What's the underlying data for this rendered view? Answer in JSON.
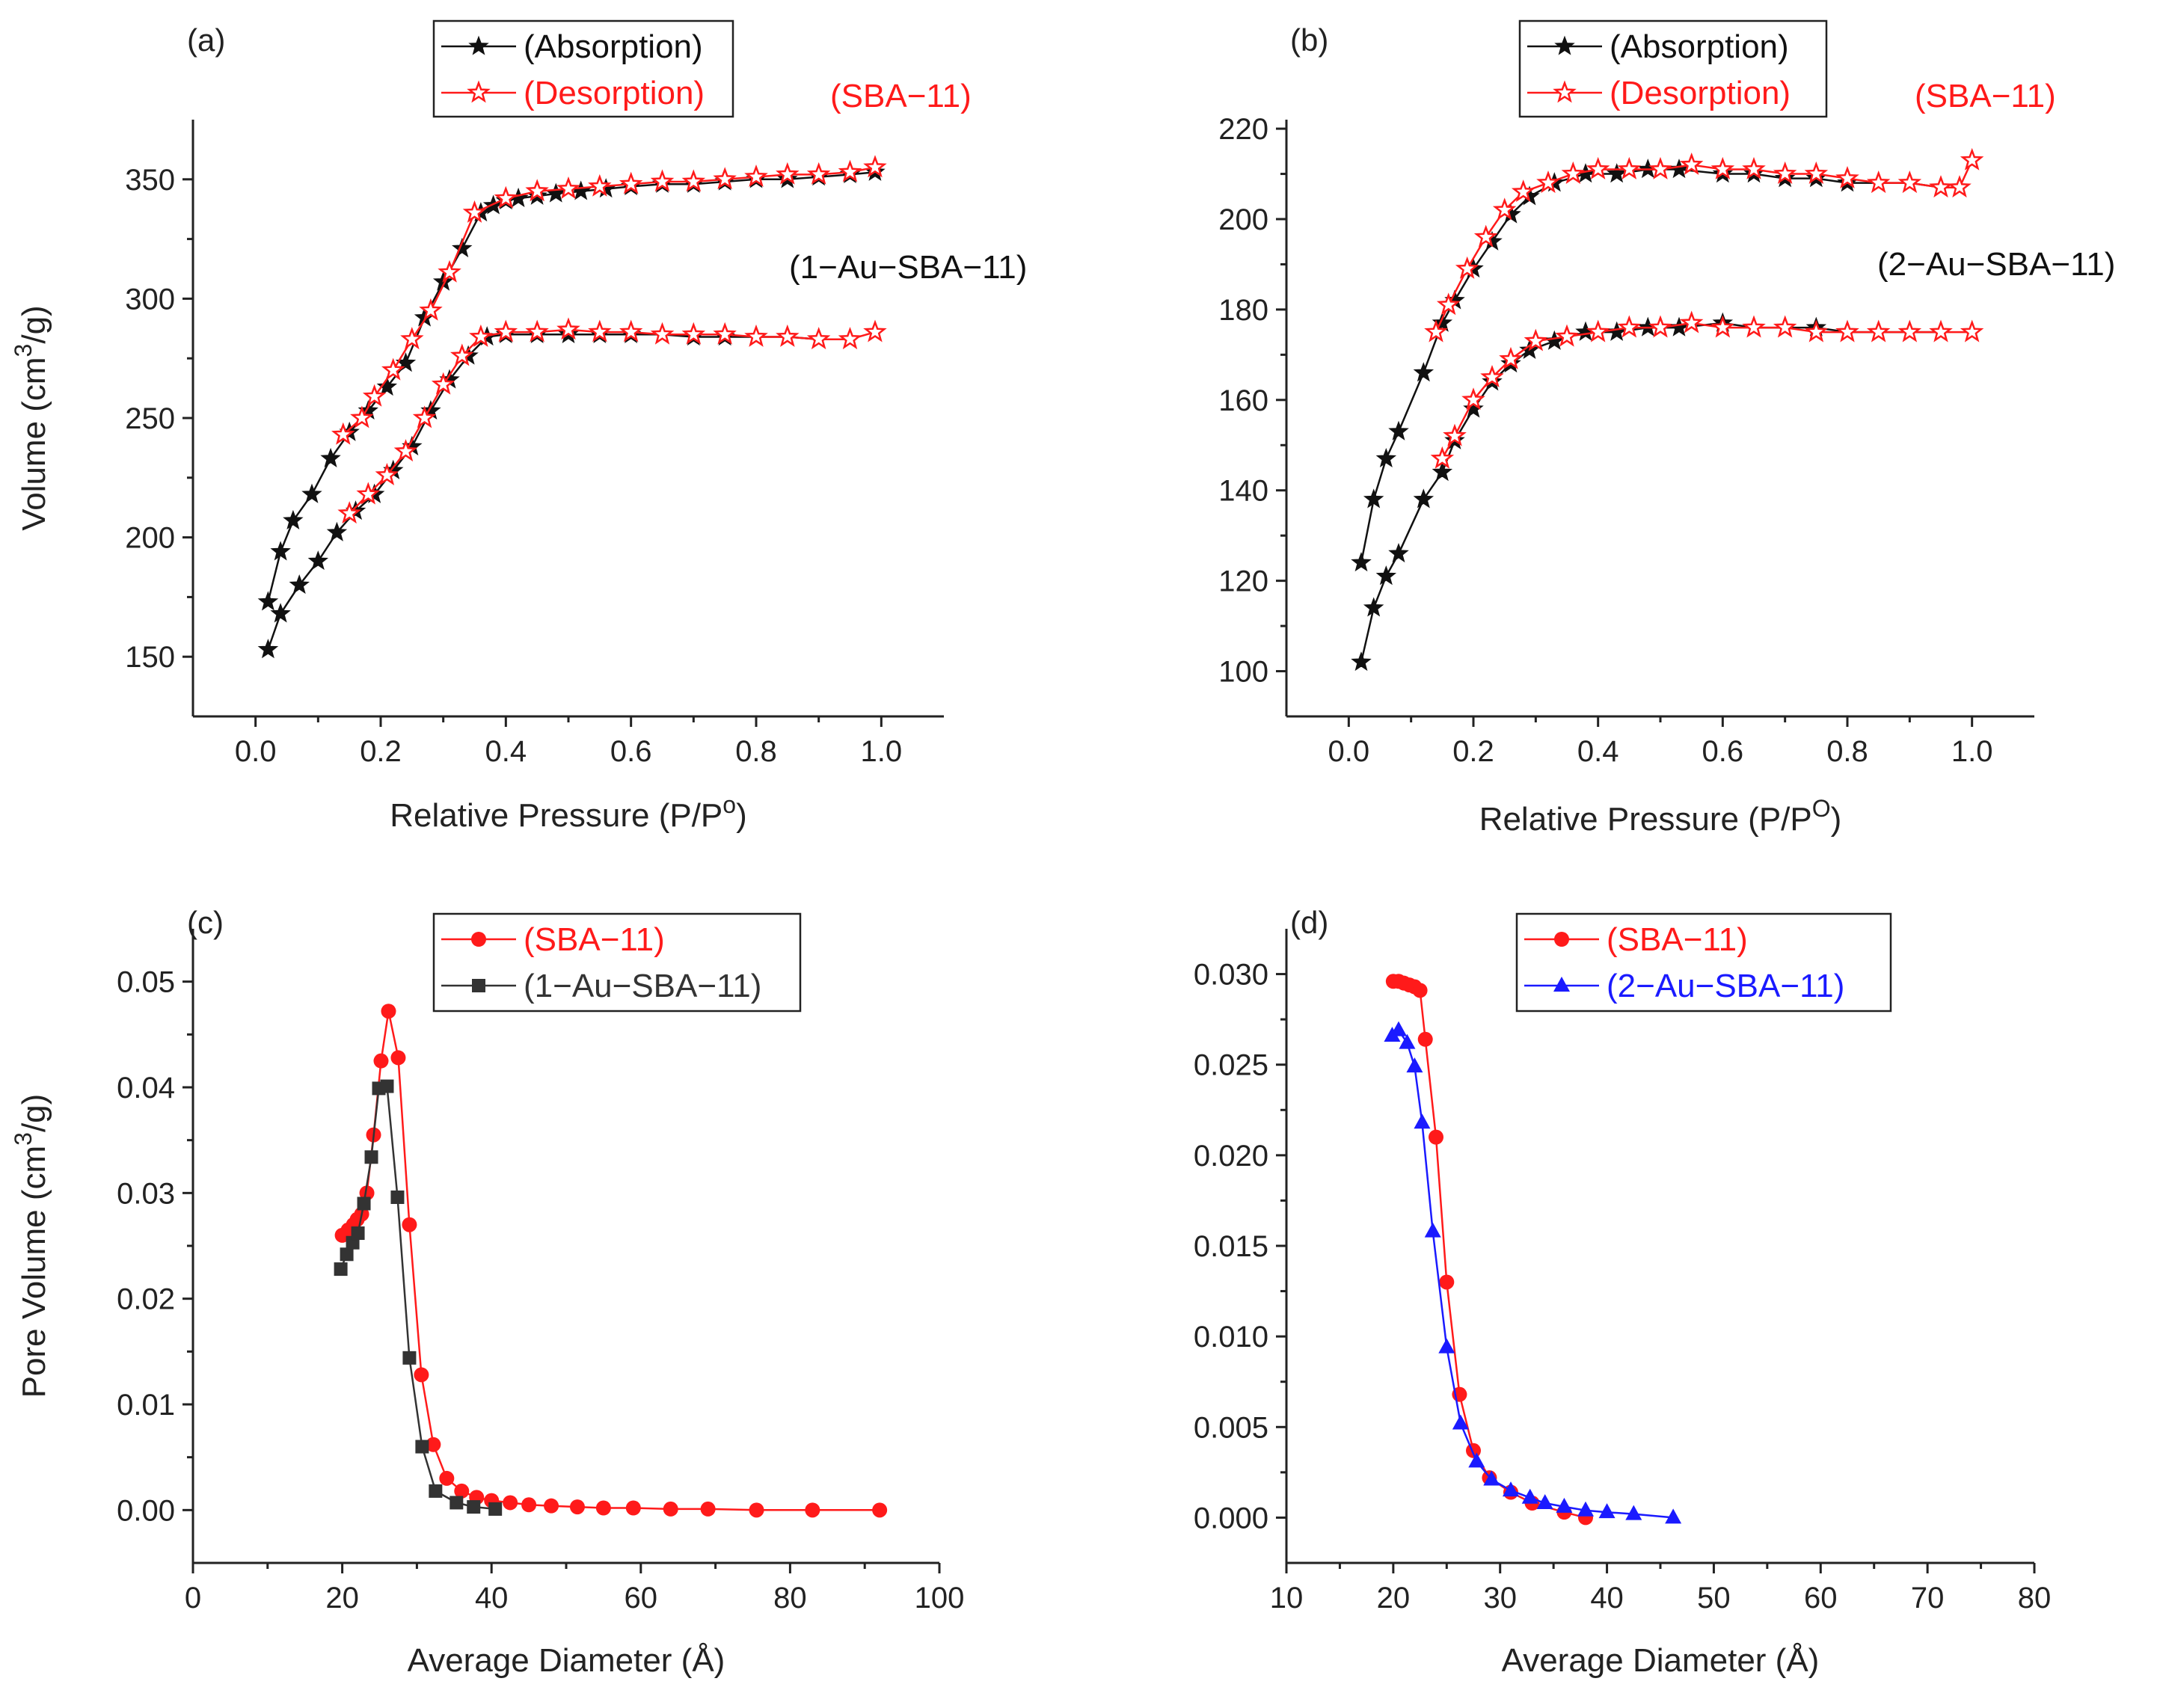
{
  "figure": {
    "panels": [
      "(a)",
      "(b)",
      "(c)",
      "(d)"
    ]
  },
  "colors": {
    "black": "#111111",
    "red": "#ff1a1a",
    "blue": "#1a1aff",
    "gray": "#333333"
  },
  "chart_data": [
    {
      "panel": "(a)",
      "type": "line",
      "xlabel": "Relative Pressure (P/P",
      "xlabel_sup": "o",
      "xlabel_tail": ")",
      "ylabel": "Volume (cm",
      "ylabel_sup": "3",
      "ylabel_tail": "/g)",
      "xlim": [
        -0.1,
        1.1
      ],
      "ylim": [
        125,
        375
      ],
      "xticks": [
        0.0,
        0.2,
        0.4,
        0.6,
        0.8,
        1.0
      ],
      "xtick_labels": [
        "0.0",
        "0.2",
        "0.4",
        "0.6",
        "0.8",
        "1.0"
      ],
      "yticks": [
        150,
        200,
        250,
        300,
        350
      ],
      "ytick_labels": [
        "150",
        "200",
        "250",
        "300",
        "350"
      ],
      "legend": [
        "(Absorption)",
        "(Desorption)"
      ],
      "annotations": [
        "(SBA−11)",
        "(1−Au−SBA−11)"
      ],
      "series": [
        {
          "name": "(SBA−11) Absorption",
          "color": "black",
          "marker": "star-filled",
          "x": [
            0.02,
            0.04,
            0.06,
            0.09,
            0.12,
            0.15,
            0.18,
            0.21,
            0.24,
            0.27,
            0.3,
            0.33,
            0.36,
            0.38,
            0.4,
            0.42,
            0.45,
            0.48,
            0.52,
            0.56,
            0.6,
            0.65,
            0.7,
            0.75,
            0.8,
            0.85,
            0.9,
            0.95,
            0.99
          ],
          "y": [
            173,
            194,
            207,
            218,
            233,
            244,
            253,
            263,
            273,
            292,
            307,
            321,
            336,
            339,
            341,
            342,
            343,
            344,
            345,
            346,
            347,
            348,
            348,
            349,
            350,
            350,
            351,
            352,
            353
          ]
        },
        {
          "name": "(SBA−11) Desorption",
          "color": "red",
          "marker": "star-open",
          "x": [
            0.14,
            0.17,
            0.19,
            0.22,
            0.25,
            0.28,
            0.31,
            0.35,
            0.4,
            0.45,
            0.5,
            0.55,
            0.6,
            0.65,
            0.7,
            0.75,
            0.8,
            0.85,
            0.9,
            0.95,
            0.99
          ],
          "y": [
            243,
            250,
            259,
            270,
            283,
            295,
            311,
            336,
            342,
            345,
            346,
            347,
            348,
            349,
            349,
            350,
            351,
            352,
            352,
            353,
            355
          ]
        },
        {
          "name": "(1−Au−SBA−11) Absorption",
          "color": "black",
          "marker": "star-filled",
          "x": [
            0.02,
            0.04,
            0.07,
            0.1,
            0.13,
            0.16,
            0.19,
            0.22,
            0.25,
            0.28,
            0.31,
            0.34,
            0.37,
            0.4,
            0.45,
            0.5,
            0.55,
            0.6,
            0.65,
            0.7,
            0.75,
            0.8,
            0.85,
            0.9,
            0.95
          ],
          "y": [
            153,
            168,
            180,
            190,
            202,
            211,
            218,
            228,
            238,
            253,
            266,
            276,
            284,
            285,
            285,
            285,
            285,
            285,
            285,
            284,
            284,
            284,
            284,
            283,
            283
          ]
        },
        {
          "name": "(1−Au−SBA−11) Desorption",
          "color": "red",
          "marker": "star-open",
          "x": [
            0.15,
            0.18,
            0.21,
            0.24,
            0.27,
            0.3,
            0.33,
            0.36,
            0.4,
            0.45,
            0.5,
            0.55,
            0.6,
            0.65,
            0.7,
            0.75,
            0.8,
            0.85,
            0.9,
            0.95,
            0.99
          ],
          "y": [
            210,
            218,
            226,
            236,
            250,
            264,
            276,
            284,
            286,
            286,
            287,
            286,
            286,
            285,
            285,
            285,
            284,
            284,
            283,
            283,
            286
          ]
        }
      ]
    },
    {
      "panel": "(b)",
      "type": "line",
      "xlabel": "Relative Pressure (P/P",
      "xlabel_sup": "O",
      "xlabel_tail": ")",
      "ylabel": "",
      "xlim": [
        -0.1,
        1.1
      ],
      "ylim": [
        90,
        222
      ],
      "xticks": [
        0.0,
        0.2,
        0.4,
        0.6,
        0.8,
        1.0
      ],
      "xtick_labels": [
        "0.0",
        "0.2",
        "0.4",
        "0.6",
        "0.8",
        "1.0"
      ],
      "yticks": [
        100,
        120,
        140,
        160,
        180,
        200,
        220
      ],
      "ytick_labels": [
        "100",
        "120",
        "140",
        "160",
        "180",
        "200",
        "220"
      ],
      "legend": [
        "(Absorption)",
        "(Desorption)"
      ],
      "annotations": [
        "(SBA−11)",
        "(2−Au−SBA−11)"
      ],
      "series": [
        {
          "name": "(SBA−11) Absorption",
          "color": "black",
          "marker": "star-filled",
          "x": [
            0.02,
            0.04,
            0.06,
            0.08,
            0.12,
            0.15,
            0.17,
            0.2,
            0.23,
            0.26,
            0.29,
            0.33,
            0.38,
            0.43,
            0.48,
            0.53,
            0.6,
            0.65,
            0.7,
            0.75,
            0.8,
            0.85,
            0.9,
            0.95
          ],
          "y": [
            124,
            138,
            147,
            153,
            166,
            177,
            182,
            189,
            195,
            201,
            205,
            208,
            210,
            210,
            211,
            211,
            210,
            210,
            209,
            209,
            208,
            208,
            208,
            207
          ]
        },
        {
          "name": "(SBA−11) Desorption",
          "color": "red",
          "marker": "star-open",
          "x": [
            0.14,
            0.16,
            0.19,
            0.22,
            0.25,
            0.28,
            0.32,
            0.36,
            0.4,
            0.45,
            0.5,
            0.55,
            0.6,
            0.65,
            0.7,
            0.75,
            0.8,
            0.85,
            0.9,
            0.95,
            0.98,
            1.0
          ],
          "y": [
            175,
            181,
            189,
            196,
            202,
            206,
            208,
            210,
            211,
            211,
            211,
            212,
            211,
            211,
            210,
            210,
            209,
            208,
            208,
            207,
            207,
            213
          ]
        },
        {
          "name": "(2−Au−SBA−11) Absorption",
          "color": "black",
          "marker": "star-filled",
          "x": [
            0.02,
            0.04,
            0.06,
            0.08,
            0.12,
            0.15,
            0.17,
            0.2,
            0.23,
            0.26,
            0.29,
            0.33,
            0.38,
            0.43,
            0.48,
            0.53,
            0.6,
            0.65,
            0.7,
            0.75,
            0.8,
            0.85,
            0.9,
            0.95
          ],
          "y": [
            102,
            114,
            121,
            126,
            138,
            144,
            151,
            158,
            164,
            168,
            171,
            173,
            175,
            175,
            176,
            176,
            177,
            176,
            176,
            176,
            175,
            175,
            175,
            175
          ]
        },
        {
          "name": "(2−Au−SBA−11) Desorption",
          "color": "red",
          "marker": "star-open",
          "x": [
            0.15,
            0.17,
            0.2,
            0.23,
            0.26,
            0.3,
            0.35,
            0.4,
            0.45,
            0.5,
            0.55,
            0.6,
            0.65,
            0.7,
            0.75,
            0.8,
            0.85,
            0.9,
            0.95,
            1.0
          ],
          "y": [
            147,
            152,
            160,
            165,
            169,
            173,
            174,
            175,
            176,
            176,
            177,
            176,
            176,
            176,
            175,
            175,
            175,
            175,
            175,
            175
          ]
        }
      ]
    },
    {
      "panel": "(c)",
      "type": "line",
      "xlabel": "Average Diameter (Å)",
      "ylabel": "Pore Volume (cm",
      "ylabel_sup": "3",
      "ylabel_tail": "/g)",
      "xlim": [
        0,
        100
      ],
      "ylim": [
        -0.005,
        0.055
      ],
      "xticks": [
        0,
        20,
        40,
        60,
        80,
        100
      ],
      "xtick_labels": [
        "0",
        "20",
        "40",
        "60",
        "80",
        "100"
      ],
      "yticks": [
        0.0,
        0.01,
        0.02,
        0.03,
        0.04,
        0.05
      ],
      "ytick_labels": [
        "0.00",
        "0.01",
        "0.02",
        "0.03",
        "0.04",
        "0.05"
      ],
      "legend": [
        "(SBA−11)",
        "(1−Au−SBA−11)"
      ],
      "series": [
        {
          "name": "(SBA−11)",
          "color": "red",
          "marker": "circle",
          "x": [
            20.0,
            20.8,
            21.5,
            22.0,
            22.6,
            23.3,
            24.2,
            25.2,
            26.2,
            27.5,
            29.0,
            30.6,
            32.2,
            34.0,
            36.0,
            38.0,
            40.0,
            42.5,
            45.0,
            48.0,
            51.5,
            55.0,
            59.0,
            64.0,
            69.0,
            75.5,
            83.0,
            92.0
          ],
          "y": [
            0.026,
            0.0265,
            0.027,
            0.0275,
            0.028,
            0.03,
            0.0355,
            0.0425,
            0.0472,
            0.0428,
            0.027,
            0.0128,
            0.0062,
            0.003,
            0.0018,
            0.0012,
            0.0009,
            0.0007,
            0.0005,
            0.0004,
            0.0003,
            0.0002,
            0.0002,
            0.0001,
            0.0001,
            0.0,
            0.0,
            0.0
          ]
        },
        {
          "name": "(1−Au−SBA−11)",
          "color": "gray",
          "marker": "square",
          "x": [
            19.8,
            20.6,
            21.4,
            22.1,
            22.9,
            23.9,
            24.9,
            26.0,
            27.4,
            29.0,
            30.7,
            32.5,
            35.3,
            37.6,
            40.5
          ],
          "y": [
            0.0228,
            0.0242,
            0.0253,
            0.0262,
            0.029,
            0.0334,
            0.0399,
            0.0401,
            0.0296,
            0.0144,
            0.006,
            0.0018,
            0.0007,
            0.0003,
            0.0001
          ]
        }
      ]
    },
    {
      "panel": "(d)",
      "type": "line",
      "xlabel": "Average Diameter (Å)",
      "ylabel": "",
      "xlim": [
        10,
        80
      ],
      "ylim": [
        -0.0025,
        0.0325
      ],
      "xticks": [
        10,
        20,
        30,
        40,
        50,
        60,
        70,
        80
      ],
      "xtick_labels": [
        "10",
        "20",
        "30",
        "40",
        "50",
        "60",
        "70",
        "80"
      ],
      "yticks": [
        0.0,
        0.005,
        0.01,
        0.015,
        0.02,
        0.025,
        0.03
      ],
      "ytick_labels": [
        "0.000",
        "0.005",
        "0.010",
        "0.015",
        "0.020",
        "0.025",
        "0.030"
      ],
      "legend": [
        "(SBA−11)",
        "(2−Au−SBA−11)"
      ],
      "series": [
        {
          "name": "(SBA−11)",
          "color": "red",
          "marker": "circle",
          "x": [
            20.0,
            20.5,
            21.0,
            21.5,
            22.0,
            22.5,
            23.0,
            24.0,
            25.0,
            26.2,
            27.5,
            29.0,
            31.0,
            33.0,
            36.0,
            38.0
          ],
          "y": [
            0.0296,
            0.0296,
            0.0295,
            0.0294,
            0.0293,
            0.0291,
            0.0264,
            0.021,
            0.013,
            0.0068,
            0.0037,
            0.0022,
            0.0014,
            0.0008,
            0.0003,
            0.0
          ]
        },
        {
          "name": "(2−Au−SBA−11)",
          "color": "blue",
          "marker": "triangle",
          "x": [
            19.9,
            20.5,
            21.3,
            22.0,
            22.7,
            23.7,
            25.0,
            26.3,
            27.8,
            29.2,
            31.0,
            32.8,
            34.2,
            36.0,
            38.0,
            40.0,
            42.5,
            46.2
          ],
          "y": [
            0.0266,
            0.0269,
            0.0262,
            0.0249,
            0.0218,
            0.0158,
            0.0094,
            0.0052,
            0.0031,
            0.0021,
            0.0015,
            0.0011,
            0.0008,
            0.0006,
            0.0004,
            0.0003,
            0.0002,
            0.0
          ]
        }
      ]
    }
  ]
}
